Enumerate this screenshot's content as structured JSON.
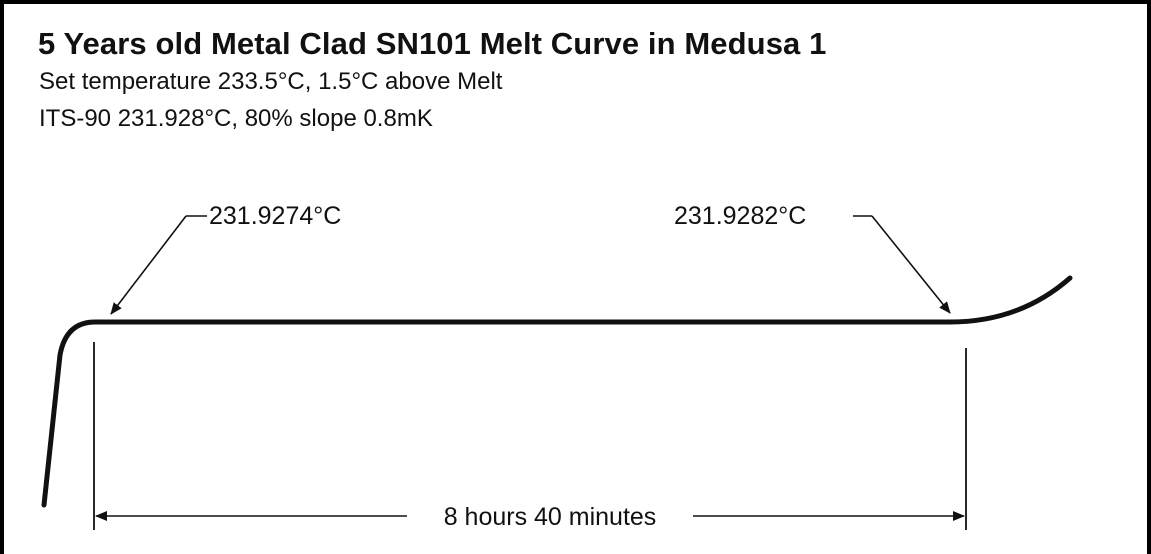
{
  "chart_data": {
    "type": "line",
    "title": "5 Years old Metal Clad SN101 Melt Curve in Medusa 1",
    "subtitle_lines": [
      "Set temperature 233.5°C, 1.5°C above Melt",
      "ITS-90 231.928°C, 80% slope 0.8mK"
    ],
    "xlabel": "",
    "ylabel": "",
    "grid": false,
    "annotations": {
      "start_temp": "231.9274°C",
      "end_temp": "231.9282°C",
      "duration": "8 hours 40 minutes"
    },
    "duration_hours": 8.667
  }
}
